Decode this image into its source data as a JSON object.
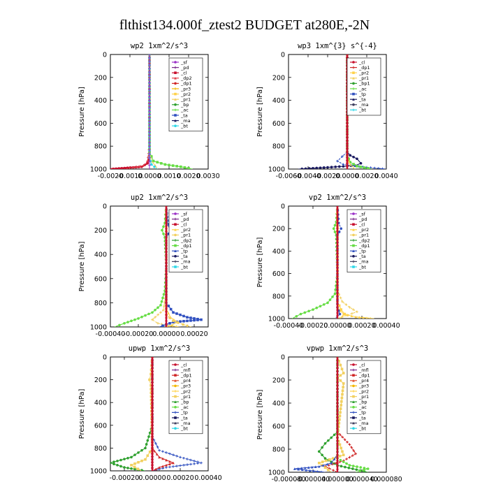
{
  "figure": {
    "title": "flthist134.000f_ztest2  BUDGET at280E,-2N",
    "ylabel": "Pressure [hPa]"
  },
  "chart_data": [
    {
      "type": "line",
      "id": "wp2",
      "title": "wp2  1xm^2/s^3",
      "xlim": [
        -0.002,
        0.003
      ],
      "xticks": [
        -0.002,
        -0.001,
        0,
        0.001,
        0.002,
        0.003
      ],
      "xticklabels": [
        "-0.0020",
        "-0.0010",
        "0.0000",
        "0.0010",
        "0.0020",
        "0.0030"
      ],
      "ylim": [
        1000,
        0
      ],
      "yticks": [
        0,
        200,
        400,
        600,
        800,
        1000
      ],
      "legend": [
        "_sf",
        "_pd",
        "_cl",
        "_dp2",
        "_dp1",
        "_pr3",
        "_pr2",
        "_pr1",
        "_bp",
        "_ac",
        "_ta",
        "_ma",
        "_bt"
      ],
      "colors": [
        "#9b30c8",
        "#7a2a8c",
        "#c8102e",
        "#e0404a",
        "#d02828",
        "#f5b800",
        "#ffd24a",
        "#f2d060",
        "#2ea02e",
        "#66dd44",
        "#3050c0",
        "#1a1a60",
        "#30d8e8"
      ],
      "series": [
        {
          "name": "_cl",
          "x": [
            0.0,
            0.0,
            0.0,
            -0.0001,
            -0.0004,
            -0.002
          ],
          "y": [
            0,
            600,
            900,
            950,
            980,
            1000
          ]
        },
        {
          "name": "_dp2",
          "x": [
            0.0,
            0.0,
            -0.0001,
            -0.0003,
            -0.0012
          ],
          "y": [
            0,
            800,
            930,
            970,
            1000
          ]
        },
        {
          "name": "_ac",
          "x": [
            0.0,
            0.0,
            0.0002,
            0.0008,
            0.0016,
            0.0022
          ],
          "y": [
            0,
            850,
            930,
            960,
            980,
            1000
          ]
        },
        {
          "name": "_pr1",
          "x": [
            0.0,
            0.0,
            0.0001,
            0.0003,
            0.0004
          ],
          "y": [
            0,
            860,
            930,
            970,
            1000
          ]
        },
        {
          "name": "_bt",
          "x": [
            0.0,
            0.0,
            0.0001,
            0.0004
          ],
          "y": [
            0,
            900,
            960,
            1000
          ]
        },
        {
          "name": "_sf",
          "x": [
            0.0,
            0.0,
            0.0,
            0.0
          ],
          "y": [
            0,
            400,
            800,
            1000
          ]
        }
      ]
    },
    {
      "type": "line",
      "id": "wp3",
      "title": "wp3  1xm^{3} s^{-4}",
      "xlim": [
        -0.006,
        0.004
      ],
      "xticks": [
        -0.006,
        -0.004,
        -0.002,
        0,
        0.002,
        0.004
      ],
      "xticklabels": [
        "-0.0060",
        "-0.0040",
        "-0.0020",
        "0.0000",
        "0.0020",
        "0.0040"
      ],
      "ylim": [
        1000,
        0
      ],
      "yticks": [
        0,
        200,
        400,
        600,
        800,
        1000
      ],
      "legend": [
        "_cl",
        "_dp1",
        "_pr2",
        "_pr1",
        "_bp1",
        "_ac",
        "_tp",
        "_ta",
        "_ma",
        "_bt"
      ],
      "colors": [
        "#c8102e",
        "#d02828",
        "#ffd24a",
        "#f2d060",
        "#2ea02e",
        "#66dd44",
        "#3050c0",
        "#1a1a60",
        "#404060",
        "#30d8e8"
      ],
      "series": [
        {
          "name": "_ta",
          "x": [
            0.0,
            0.0,
            0.0003,
            0.001,
            0.0014,
            0.0008,
            -0.002,
            -0.005
          ],
          "y": [
            0,
            850,
            880,
            910,
            950,
            970,
            985,
            1000
          ]
        },
        {
          "name": "_tp",
          "x": [
            0.0,
            0.0,
            -0.0005,
            -0.001,
            -0.0004,
            0.002,
            0.004
          ],
          "y": [
            0,
            850,
            890,
            930,
            960,
            985,
            1000
          ]
        },
        {
          "name": "_ac",
          "x": [
            0.0,
            0.0,
            0.0003,
            0.001,
            0.0025
          ],
          "y": [
            0,
            880,
            940,
            975,
            1000
          ]
        },
        {
          "name": "_pr2",
          "x": [
            0.0,
            0.0,
            0.0003,
            0.0008
          ],
          "y": [
            0,
            900,
            960,
            1000
          ]
        },
        {
          "name": "_cl",
          "x": [
            0.0,
            0.0,
            0.0,
            0.0
          ],
          "y": [
            0,
            400,
            800,
            1000
          ]
        }
      ]
    },
    {
      "type": "line",
      "id": "up2",
      "title": "up2  1xm^2/s^3",
      "xlim": [
        -0.0004,
        0.0003
      ],
      "xticks": [
        -0.0004,
        -0.0002,
        0,
        0.0002
      ],
      "xticklabels": [
        "-0.00040",
        "-0.00020",
        "0.00000",
        "0.00020"
      ],
      "ylim": [
        1000,
        0
      ],
      "yticks": [
        0,
        200,
        400,
        600,
        800,
        1000
      ],
      "legend": [
        "_sf",
        "_pd",
        "_cl",
        "_pr2",
        "_pr1",
        "_dp2",
        "_dp1",
        "_tp",
        "_ta",
        "_ma",
        "_bt"
      ],
      "colors": [
        "#9b30c8",
        "#7a2a8c",
        "#c8102e",
        "#ffd24a",
        "#f2d060",
        "#2ea02e",
        "#66dd44",
        "#3050c0",
        "#1a1a60",
        "#404060",
        "#30d8e8"
      ],
      "series": [
        {
          "name": "_dp1",
          "x": [
            0.0,
            -1e-05,
            -3e-05,
            -1e-05,
            0.0,
            -1e-05,
            -4e-05,
            -0.0001,
            -0.0002,
            -0.0003,
            -0.00037
          ],
          "y": [
            0,
            140,
            200,
            260,
            500,
            700,
            820,
            880,
            930,
            970,
            1000
          ]
        },
        {
          "name": "_pr1",
          "x": [
            0.0,
            0.0,
            -2e-05,
            -6e-05,
            -0.0001,
            -6e-05,
            2e-05,
            0.0001
          ],
          "y": [
            0,
            700,
            860,
            900,
            940,
            970,
            990,
            1000
          ]
        },
        {
          "name": "_tp",
          "x": [
            0.0,
            1e-05,
            3e-05,
            0.0,
            0.0,
            5e-05,
            0.00015,
            0.00025,
            5e-05,
            -5e-05
          ],
          "y": [
            0,
            150,
            200,
            260,
            800,
            880,
            920,
            940,
            960,
            1000
          ]
        },
        {
          "name": "_pr2",
          "x": [
            0.0,
            0.0,
            3e-05,
            8e-05,
            4e-05,
            0.0
          ],
          "y": [
            0,
            850,
            920,
            960,
            985,
            1000
          ]
        },
        {
          "name": "_ac",
          "x": [
            0.0,
            0.0,
            5e-05,
            0.00012,
            0.00018
          ],
          "y": [
            0,
            900,
            950,
            980,
            1000
          ]
        },
        {
          "name": "_cl",
          "x": [
            0.0,
            0.0,
            0.0,
            0.0
          ],
          "y": [
            0,
            400,
            800,
            1000
          ]
        }
      ]
    },
    {
      "type": "line",
      "id": "vp2",
      "title": "vp2  1xm^2/s^3",
      "xlim": [
        -0.0004,
        0.0004
      ],
      "xticks": [
        -0.0004,
        -0.0002,
        0,
        0.0002,
        0.0004
      ],
      "xticklabels": [
        "-0.00040",
        "-0.00020",
        "0.00000",
        "0.00020",
        "0.00040"
      ],
      "ylim": [
        1000,
        0
      ],
      "yticks": [
        0,
        200,
        400,
        600,
        800,
        1000
      ],
      "legend": [
        "_sf",
        "_pd",
        "_cl",
        "_pr2",
        "_pr1",
        "_dp2",
        "_dp1",
        "_tp",
        "_ta",
        "_ma",
        "_bt"
      ],
      "colors": [
        "#9b30c8",
        "#7a2a8c",
        "#c8102e",
        "#ffd24a",
        "#f2d060",
        "#2ea02e",
        "#66dd44",
        "#3050c0",
        "#1a1a60",
        "#404060",
        "#30d8e8"
      ],
      "series": [
        {
          "name": "_dp1",
          "x": [
            0.0,
            -1e-05,
            -3e-05,
            -1e-05,
            0.0,
            -2e-05,
            -8e-05,
            -0.0002,
            -0.0003,
            -0.00037
          ],
          "y": [
            0,
            140,
            200,
            260,
            600,
            780,
            860,
            920,
            960,
            1000
          ]
        },
        {
          "name": "_pr1",
          "x": [
            0.0,
            0.0,
            4e-05,
            0.0001,
            0.00016,
            8e-05,
            0.0
          ],
          "y": [
            0,
            750,
            850,
            900,
            940,
            970,
            1000
          ]
        },
        {
          "name": "_pr2",
          "x": [
            0.0,
            0.0,
            3e-05,
            6e-05,
            2e-05
          ],
          "y": [
            0,
            850,
            920,
            960,
            1000
          ]
        },
        {
          "name": "_ac",
          "x": [
            0.0,
            0.0,
            5e-05,
            0.00015,
            0.0003
          ],
          "y": [
            0,
            900,
            960,
            985,
            1000
          ]
        },
        {
          "name": "_tp",
          "x": [
            0.0,
            1e-05,
            3e-05,
            0.0,
            0.0,
            2e-05,
            -2e-05
          ],
          "y": [
            0,
            150,
            200,
            260,
            900,
            960,
            1000
          ]
        },
        {
          "name": "_cl",
          "x": [
            0.0,
            0.0,
            0.0,
            0.0
          ],
          "y": [
            0,
            400,
            800,
            1000
          ]
        }
      ]
    },
    {
      "type": "line",
      "id": "upwp",
      "title": "upwp  1xm^2/s^3",
      "xlim": [
        -0.0003,
        0.0004
      ],
      "xticks": [
        -0.0002,
        0,
        0.0002,
        0.0004
      ],
      "xticklabels": [
        "-0.00020",
        "0.00000",
        "0.00020",
        "0.00040"
      ],
      "ylim": [
        1000,
        0
      ],
      "yticks": [
        0,
        200,
        400,
        600,
        800,
        1000
      ],
      "legend": [
        "_cl",
        "_mfl",
        "_dp1",
        "_pr4",
        "_pr3",
        "_pr2",
        "_pr1",
        "_bp",
        "_ac",
        "_tp",
        "_ta",
        "_ma",
        "_bt"
      ],
      "colors": [
        "#c8102e",
        "#7a2a8c",
        "#d02828",
        "#e05030",
        "#f5b800",
        "#ffd24a",
        "#f2d060",
        "#2ea02e",
        "#66dd44",
        "#3050c0",
        "#1a1a60",
        "#404060",
        "#30d8e8"
      ],
      "series": [
        {
          "name": "_bp",
          "x": [
            0.0,
            0.0,
            -5e-05,
            -0.00015,
            -0.0003,
            -0.0002,
            -5e-05
          ],
          "y": [
            0,
            600,
            800,
            880,
            930,
            970,
            1000
          ]
        },
        {
          "name": "_tp",
          "x": [
            0.0,
            0.0,
            5e-05,
            0.0002,
            0.00035,
            0.0001,
            0.0
          ],
          "y": [
            0,
            700,
            820,
            880,
            930,
            970,
            1000
          ]
        },
        {
          "name": "_pr1",
          "x": [
            0.0,
            -1e-05,
            -2e-05,
            -1e-05,
            0.0,
            -5e-05,
            -0.00015,
            -8e-05
          ],
          "y": [
            0,
            150,
            200,
            250,
            800,
            900,
            950,
            1000
          ]
        },
        {
          "name": "_dp1",
          "x": [
            0.0,
            0.0,
            5e-05,
            0.00015,
            5e-05,
            0.0
          ],
          "y": [
            0,
            800,
            880,
            930,
            970,
            1000
          ]
        },
        {
          "name": "_cl",
          "x": [
            0.0,
            0.0,
            0.0,
            0.0
          ],
          "y": [
            0,
            400,
            800,
            1000
          ]
        }
      ]
    },
    {
      "type": "line",
      "id": "vpwp",
      "title": "vpwp  1xm^2/s^3",
      "xlim": [
        -8e-05,
        8e-05
      ],
      "xticks": [
        -8e-05,
        -4e-05,
        0,
        4e-05,
        8e-05
      ],
      "xticklabels": [
        "-0.000080",
        "-0.000040",
        "0.000000",
        "0.000040",
        "0.000080"
      ],
      "ylim": [
        1000,
        0
      ],
      "yticks": [
        0,
        200,
        400,
        600,
        800,
        1000
      ],
      "legend": [
        "_cl",
        "_mfl",
        "_dp1",
        "_pr4",
        "_pr3",
        "_pr2",
        "_pr1",
        "_bp",
        "_ac",
        "_tp",
        "_ta",
        "_ma",
        "_bt"
      ],
      "colors": [
        "#c8102e",
        "#7a2a8c",
        "#d02828",
        "#e05030",
        "#f5b800",
        "#ffd24a",
        "#f2d060",
        "#2ea02e",
        "#66dd44",
        "#3050c0",
        "#1a1a60",
        "#404060",
        "#30d8e8"
      ],
      "series": [
        {
          "name": "_bp",
          "x": [
            0.0,
            0.0,
            -2e-05,
            -3e-05,
            -2e-05,
            0.0,
            5e-05
          ],
          "y": [
            0,
            650,
            750,
            820,
            880,
            940,
            1000
          ]
        },
        {
          "name": "_dp1",
          "x": [
            0.0,
            0.0,
            2e-05,
            3e-05,
            1e-05,
            -2e-05,
            0.0
          ],
          "y": [
            0,
            650,
            760,
            840,
            900,
            950,
            1000
          ]
        },
        {
          "name": "_pr1",
          "x": [
            0.0,
            1e-05,
            0.0,
            1e-05,
            0.0,
            1e-05,
            -3e-05,
            -1e-05
          ],
          "y": [
            0,
            140,
            180,
            230,
            700,
            850,
            920,
            1000
          ]
        },
        {
          "name": "_tp",
          "x": [
            0.0,
            0.0,
            -1e-05,
            -3e-05,
            -7e-05,
            -2e-05
          ],
          "y": [
            0,
            850,
            920,
            950,
            970,
            1000
          ]
        },
        {
          "name": "_ac",
          "x": [
            0.0,
            0.0,
            2e-05,
            5e-05,
            3e-05
          ],
          "y": [
            0,
            880,
            940,
            970,
            1000
          ]
        },
        {
          "name": "_cl",
          "x": [
            0.0,
            0.0,
            0.0,
            0.0
          ],
          "y": [
            0,
            400,
            800,
            1000
          ]
        }
      ]
    }
  ]
}
